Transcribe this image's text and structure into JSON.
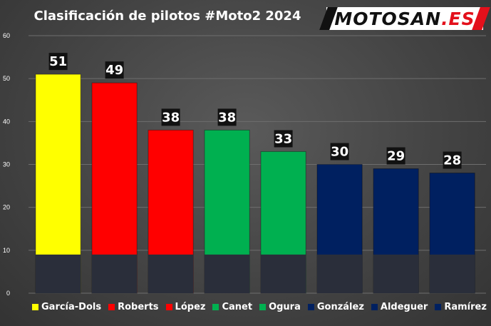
{
  "title": "Clasificación de pilotos #Moto2 2024",
  "logo": {
    "main": "MOTOSAN",
    "accent": ".ES"
  },
  "chart_data": {
    "type": "bar",
    "categories": [
      "García-Dols",
      "Roberts",
      "López",
      "Canet",
      "Ogura",
      "González",
      "Aldeguer",
      "Ramírez"
    ],
    "values": [
      51,
      49,
      38,
      38,
      33,
      30,
      29,
      28
    ],
    "colors": [
      "#ffff00",
      "#ff0000",
      "#ff0000",
      "#00b050",
      "#00b050",
      "#002060",
      "#002060",
      "#002060"
    ],
    "ylim": [
      0,
      60
    ],
    "yticks": [
      0,
      10,
      20,
      30,
      40,
      50,
      60
    ],
    "grid": true,
    "legend": "bottom",
    "data_labels": true
  }
}
